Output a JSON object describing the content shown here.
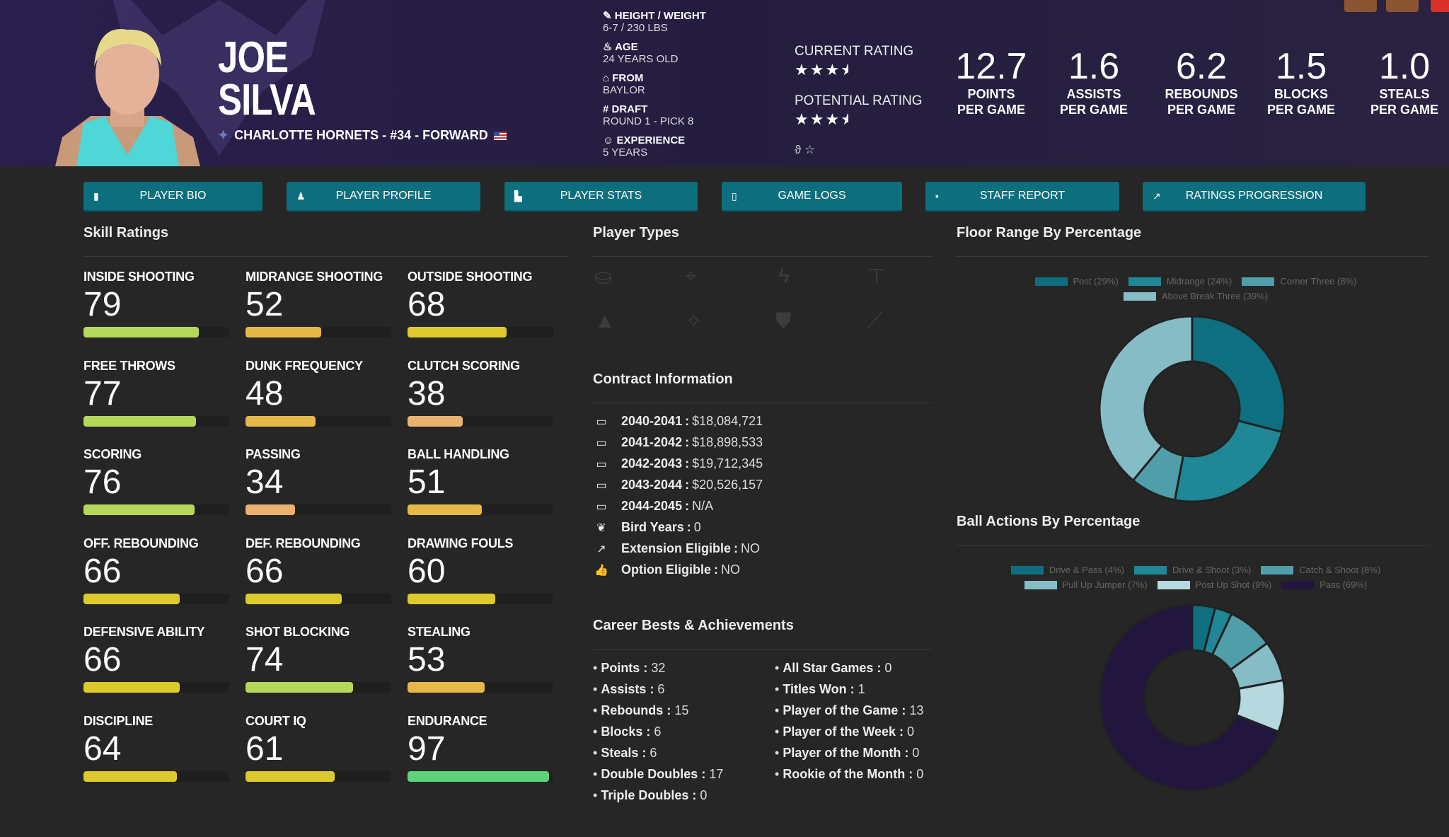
{
  "header": {
    "first_name": "JOE",
    "last_name": "SILVA",
    "team_line": "CHARLOTTE HORNETS - #34 - FORWARD",
    "info": [
      {
        "icon": "ruler-icon",
        "label": "HEIGHT / WEIGHT",
        "value": "6-7 / 230 LBS"
      },
      {
        "icon": "birthday-cake-icon",
        "label": "AGE",
        "value": "24 YEARS OLD"
      },
      {
        "icon": "school-icon",
        "label": "FROM",
        "value": "BAYLOR"
      },
      {
        "icon": "hashtag-icon",
        "label": "DRAFT",
        "value": "ROUND 1 - PICK 8"
      },
      {
        "icon": "user-clock-icon",
        "label": "EXPERIENCE",
        "value": "5 YEARS"
      }
    ],
    "current_rating_label": "CURRENT RATING",
    "current_rating_stars": 3.5,
    "potential_rating_label": "POTENTIAL RATING",
    "potential_rating_stars": 3.5,
    "stats": [
      {
        "value": "12.7",
        "l1": "POINTS",
        "l2": "PER GAME"
      },
      {
        "value": "1.6",
        "l1": "ASSISTS",
        "l2": "PER GAME"
      },
      {
        "value": "6.2",
        "l1": "REBOUNDS",
        "l2": "PER GAME"
      },
      {
        "value": "1.5",
        "l1": "BLOCKS",
        "l2": "PER GAME"
      },
      {
        "value": "1.0",
        "l1": "STEALS",
        "l2": "PER GAME"
      }
    ]
  },
  "nav": [
    "PLAYER BIO",
    "PLAYER PROFILE",
    "PLAYER STATS",
    "GAME LOGS",
    "STAFF REPORT",
    "RATINGS PROGRESSION"
  ],
  "skills_title": "Skill Ratings",
  "skills": [
    {
      "label": "INSIDE SHOOTING",
      "value": 79
    },
    {
      "label": "MIDRANGE SHOOTING",
      "value": 52
    },
    {
      "label": "OUTSIDE SHOOTING",
      "value": 68
    },
    {
      "label": "FREE THROWS",
      "value": 77
    },
    {
      "label": "DUNK FREQUENCY",
      "value": 48
    },
    {
      "label": "CLUTCH SCORING",
      "value": 38
    },
    {
      "label": "SCORING",
      "value": 76
    },
    {
      "label": "PASSING",
      "value": 34
    },
    {
      "label": "BALL HANDLING",
      "value": 51
    },
    {
      "label": "OFF. REBOUNDING",
      "value": 66
    },
    {
      "label": "DEF. REBOUNDING",
      "value": 66
    },
    {
      "label": "DRAWING FOULS",
      "value": 60
    },
    {
      "label": "DEFENSIVE ABILITY",
      "value": 66
    },
    {
      "label": "SHOT BLOCKING",
      "value": 74
    },
    {
      "label": "STEALING",
      "value": 53
    },
    {
      "label": "DISCIPLINE",
      "value": 64
    },
    {
      "label": "COURT IQ",
      "value": 61
    },
    {
      "label": "ENDURANCE",
      "value": 97
    }
  ],
  "colors": {
    "lime": "#b5d85a",
    "orange": "#e6b84a",
    "yellow": "#dcc92c",
    "light_orange": "#eab26f",
    "green": "#5fd37a",
    "nav": "#0d6e7d"
  },
  "player_types_title": "Player Types",
  "player_types": [
    "paint-bucket-icon",
    "crosshairs-icon",
    "bolt-icon",
    "paint-roller-icon",
    "wizard-hat-icon",
    "magic-wand-icon",
    "shield-icon",
    "broom-icon"
  ],
  "contract_title": "Contract Information",
  "contract": [
    {
      "label": "2040-2041",
      "value": "$18,084,721"
    },
    {
      "label": "2041-2042",
      "value": "$18,898,533"
    },
    {
      "label": "2042-2043",
      "value": "$19,712,345"
    },
    {
      "label": "2043-2044",
      "value": "$20,526,157"
    },
    {
      "label": "2044-2045",
      "value": "N/A"
    },
    {
      "label": "Bird Years",
      "value": "0"
    },
    {
      "label": "Extension Eligible",
      "value": "NO"
    },
    {
      "label": "Option Eligible",
      "value": "NO"
    }
  ],
  "career_title": "Career Bests & Achievements",
  "career_left": [
    {
      "label": "Points",
      "value": "32"
    },
    {
      "label": "Assists",
      "value": "6"
    },
    {
      "label": "Rebounds",
      "value": "15"
    },
    {
      "label": "Blocks",
      "value": "6"
    },
    {
      "label": "Steals",
      "value": "6"
    },
    {
      "label": "Double Doubles",
      "value": "17"
    },
    {
      "label": "Triple Doubles",
      "value": "0"
    }
  ],
  "career_right": [
    {
      "label": "All Star Games",
      "value": "0"
    },
    {
      "label": "Titles Won",
      "value": "1"
    },
    {
      "label": "Player of the Game",
      "value": "13"
    },
    {
      "label": "Player of the Week",
      "value": "0"
    },
    {
      "label": "Player of the Month",
      "value": "0"
    },
    {
      "label": "Rookie of the Month",
      "value": "0"
    }
  ],
  "chart_data": [
    {
      "type": "pie",
      "title": "Floor Range By Percentage",
      "donut": true,
      "legend": "top",
      "categories": [
        "Post (29%)",
        "Midrange (24%)",
        "Corner Three (8%)",
        "Above Break Three (39%)"
      ],
      "values": [
        29,
        24,
        8,
        39
      ],
      "colors": [
        "#0e6f80",
        "#1f8795",
        "#4f9ea9",
        "#85bcc6"
      ]
    },
    {
      "type": "pie",
      "title": "Ball Actions By Percentage",
      "donut": true,
      "legend": "top",
      "categories": [
        "Drive & Pass (4%)",
        "Drive & Shoot (3%)",
        "Catch & Shoot (8%)",
        "Pull Up Jumper (7%)",
        "Post Up Shot (9%)",
        "Pass (69%)"
      ],
      "values": [
        4,
        3,
        8,
        7,
        9,
        69
      ],
      "colors": [
        "#0e6f80",
        "#1f8795",
        "#4f9ea9",
        "#85bcc6",
        "#b5d9de",
        "#22163f"
      ]
    }
  ]
}
